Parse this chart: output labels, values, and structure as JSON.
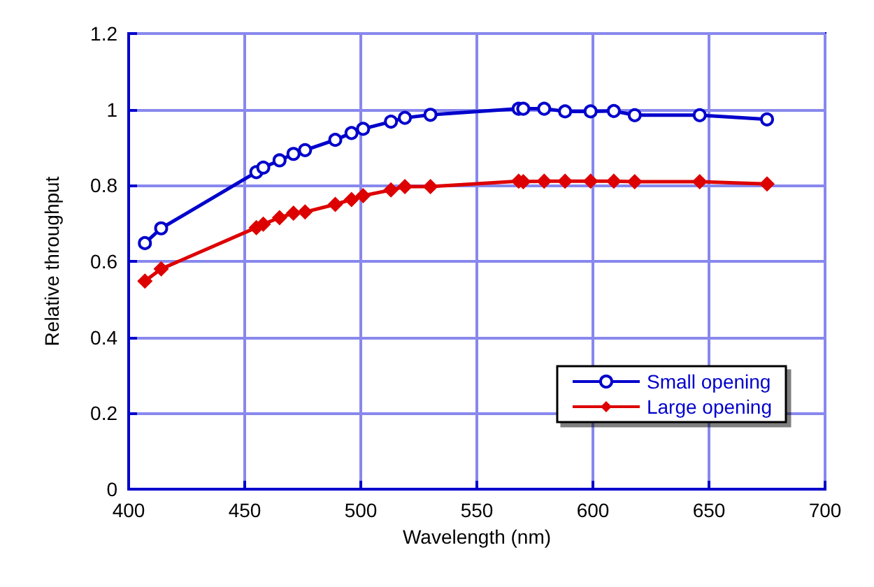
{
  "chart_data": {
    "type": "line",
    "xlabel": "Wavelength (nm)",
    "ylabel": "Relative throughput",
    "xlim": [
      400,
      700
    ],
    "xticks": [
      400,
      450,
      500,
      550,
      600,
      650,
      700
    ],
    "ylim": [
      0,
      1.2
    ],
    "yticks": [
      0,
      0.2,
      0.4,
      0.6,
      0.8,
      1,
      1.2
    ],
    "grid": true,
    "legend": "bottom right",
    "line_style": "solid",
    "series": [
      {
        "name": "Small opening",
        "color": "#0000cc",
        "marker": "circle",
        "x": [
          407,
          414,
          455,
          458,
          465,
          471,
          476,
          489,
          496,
          501,
          513,
          519,
          530,
          568,
          570,
          579,
          588,
          599,
          609,
          618,
          646,
          675
        ],
        "values": [
          0.648,
          0.687,
          0.835,
          0.847,
          0.866,
          0.883,
          0.893,
          0.92,
          0.938,
          0.949,
          0.968,
          0.978,
          0.986,
          1.002,
          1.002,
          1.002,
          0.995,
          0.995,
          0.996,
          0.985,
          0.985,
          0.974
        ]
      },
      {
        "name": "Large opening",
        "color": "#dd0000",
        "marker": "diamond",
        "x": [
          407,
          414,
          455,
          458,
          465,
          471,
          476,
          489,
          496,
          501,
          513,
          519,
          530,
          568,
          570,
          579,
          588,
          599,
          609,
          618,
          646,
          675
        ],
        "values": [
          0.548,
          0.58,
          0.689,
          0.698,
          0.715,
          0.727,
          0.73,
          0.75,
          0.763,
          0.773,
          0.788,
          0.797,
          0.797,
          0.811,
          0.81,
          0.811,
          0.811,
          0.811,
          0.811,
          0.81,
          0.81,
          0.804
        ]
      }
    ]
  }
}
